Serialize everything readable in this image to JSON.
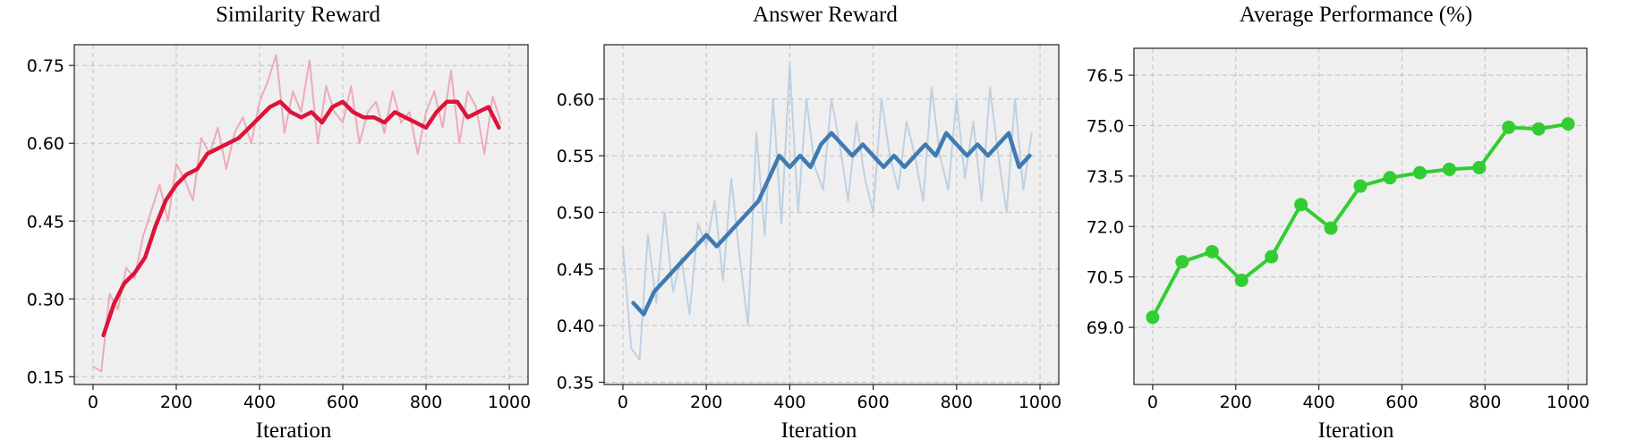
{
  "chart_data": [
    {
      "type": "line",
      "title": "Similarity Reward",
      "xlabel": "Iteration",
      "ylabel": "",
      "xlim": [
        -45,
        1045
      ],
      "ylim": [
        0.135,
        0.79
      ],
      "xticks": [
        0,
        200,
        400,
        600,
        800,
        1000
      ],
      "xtick_labels": [
        "0",
        "200",
        "400",
        "600",
        "800",
        "1000"
      ],
      "yticks": [
        0.15,
        0.3,
        0.45,
        0.6,
        0.75
      ],
      "ytick_labels": [
        "0.15",
        "0.30",
        "0.45",
        "0.60",
        "0.75"
      ],
      "grid": true,
      "colors": {
        "raw": "#eba3b2",
        "smooth": "#dc143c"
      },
      "series": [
        {
          "role": "raw",
          "x": [
            0,
            20,
            40,
            60,
            80,
            100,
            120,
            140,
            160,
            180,
            200,
            220,
            240,
            260,
            280,
            300,
            320,
            340,
            360,
            380,
            400,
            420,
            440,
            460,
            480,
            500,
            520,
            540,
            560,
            580,
            600,
            620,
            640,
            660,
            680,
            700,
            720,
            740,
            760,
            780,
            800,
            820,
            840,
            860,
            880,
            900,
            920,
            940,
            960,
            980
          ],
          "y": [
            0.17,
            0.16,
            0.31,
            0.28,
            0.36,
            0.34,
            0.42,
            0.47,
            0.52,
            0.45,
            0.56,
            0.53,
            0.49,
            0.61,
            0.58,
            0.63,
            0.55,
            0.62,
            0.65,
            0.6,
            0.68,
            0.72,
            0.77,
            0.62,
            0.7,
            0.66,
            0.76,
            0.6,
            0.71,
            0.66,
            0.64,
            0.71,
            0.6,
            0.66,
            0.68,
            0.62,
            0.7,
            0.64,
            0.66,
            0.58,
            0.66,
            0.7,
            0.63,
            0.74,
            0.6,
            0.7,
            0.67,
            0.58,
            0.69,
            0.64
          ]
        },
        {
          "role": "smooth",
          "x": [
            25,
            50,
            75,
            100,
            125,
            150,
            175,
            200,
            225,
            250,
            275,
            300,
            325,
            350,
            375,
            400,
            425,
            450,
            475,
            500,
            525,
            550,
            575,
            600,
            625,
            650,
            675,
            700,
            725,
            750,
            775,
            800,
            825,
            850,
            875,
            900,
            925,
            950,
            975
          ],
          "y": [
            0.23,
            0.29,
            0.33,
            0.35,
            0.38,
            0.44,
            0.49,
            0.52,
            0.54,
            0.55,
            0.58,
            0.59,
            0.6,
            0.61,
            0.63,
            0.65,
            0.67,
            0.68,
            0.66,
            0.65,
            0.66,
            0.64,
            0.67,
            0.68,
            0.66,
            0.65,
            0.65,
            0.64,
            0.66,
            0.65,
            0.64,
            0.63,
            0.66,
            0.68,
            0.68,
            0.65,
            0.66,
            0.67,
            0.63
          ]
        }
      ]
    },
    {
      "type": "line",
      "title": "Answer Reward",
      "xlabel": "Iteration",
      "ylabel": "",
      "xlim": [
        -45,
        1045
      ],
      "ylim": [
        0.348,
        0.648
      ],
      "xticks": [
        0,
        200,
        400,
        600,
        800,
        1000
      ],
      "xtick_labels": [
        "0",
        "200",
        "400",
        "600",
        "800",
        "1000"
      ],
      "yticks": [
        0.35,
        0.4,
        0.45,
        0.5,
        0.55,
        0.6
      ],
      "ytick_labels": [
        "0.35",
        "0.40",
        "0.45",
        "0.50",
        "0.55",
        "0.60"
      ],
      "grid": true,
      "colors": {
        "raw": "#b9cde0",
        "smooth": "#3f7ab2"
      },
      "series": [
        {
          "role": "raw",
          "x": [
            0,
            20,
            40,
            60,
            80,
            100,
            120,
            140,
            160,
            180,
            200,
            220,
            240,
            260,
            280,
            300,
            320,
            340,
            360,
            380,
            400,
            420,
            440,
            460,
            480,
            500,
            520,
            540,
            560,
            580,
            600,
            620,
            640,
            660,
            680,
            700,
            720,
            740,
            760,
            780,
            800,
            820,
            840,
            860,
            880,
            900,
            920,
            940,
            960,
            980
          ],
          "y": [
            0.47,
            0.38,
            0.37,
            0.48,
            0.42,
            0.5,
            0.43,
            0.46,
            0.41,
            0.49,
            0.47,
            0.51,
            0.44,
            0.53,
            0.46,
            0.4,
            0.57,
            0.48,
            0.6,
            0.49,
            0.63,
            0.5,
            0.6,
            0.54,
            0.52,
            0.6,
            0.56,
            0.51,
            0.58,
            0.53,
            0.5,
            0.6,
            0.55,
            0.52,
            0.58,
            0.55,
            0.51,
            0.61,
            0.55,
            0.52,
            0.6,
            0.53,
            0.58,
            0.51,
            0.61,
            0.55,
            0.5,
            0.6,
            0.52,
            0.57
          ]
        },
        {
          "role": "smooth",
          "x": [
            25,
            50,
            75,
            100,
            125,
            150,
            175,
            200,
            225,
            250,
            275,
            300,
            325,
            350,
            375,
            400,
            425,
            450,
            475,
            500,
            525,
            550,
            575,
            600,
            625,
            650,
            675,
            700,
            725,
            750,
            775,
            800,
            825,
            850,
            875,
            900,
            925,
            950,
            975
          ],
          "y": [
            0.42,
            0.41,
            0.43,
            0.44,
            0.45,
            0.46,
            0.47,
            0.48,
            0.47,
            0.48,
            0.49,
            0.5,
            0.51,
            0.53,
            0.55,
            0.54,
            0.55,
            0.54,
            0.56,
            0.57,
            0.56,
            0.55,
            0.56,
            0.55,
            0.54,
            0.55,
            0.54,
            0.55,
            0.56,
            0.55,
            0.57,
            0.56,
            0.55,
            0.56,
            0.55,
            0.56,
            0.57,
            0.54,
            0.55
          ]
        }
      ]
    },
    {
      "type": "line",
      "title": "Average Performance (%)",
      "xlabel": "Iteration",
      "ylabel": "",
      "xlim": [
        -45,
        1045
      ],
      "ylim": [
        67.3,
        77.3
      ],
      "xticks": [
        0,
        200,
        400,
        600,
        800,
        1000
      ],
      "xtick_labels": [
        "0",
        "200",
        "400",
        "600",
        "800",
        "1000"
      ],
      "yticks": [
        69.0,
        70.5,
        72.0,
        73.5,
        75.0,
        76.5
      ],
      "ytick_labels": [
        "69.0",
        "70.5",
        "72.0",
        "73.5",
        "75.0",
        "76.5"
      ],
      "grid": true,
      "colors": {
        "line": "#32cd32"
      },
      "series": [
        {
          "role": "markers",
          "x": [
            0,
            71,
            143,
            214,
            286,
            357,
            429,
            500,
            571,
            643,
            714,
            786,
            857,
            929,
            1000
          ],
          "y": [
            69.3,
            70.95,
            71.25,
            70.4,
            71.1,
            72.65,
            71.95,
            73.2,
            73.45,
            73.6,
            73.7,
            73.75,
            74.95,
            74.9,
            75.05
          ]
        }
      ]
    }
  ]
}
